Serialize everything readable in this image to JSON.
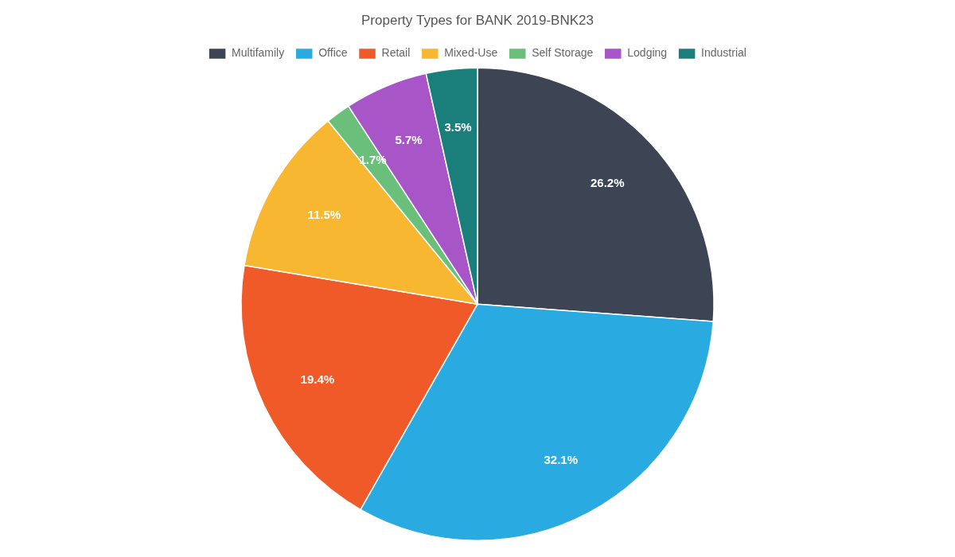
{
  "chart_data": {
    "type": "pie",
    "title": "Property Types for BANK 2019-BNK23",
    "categories": [
      "Multifamily",
      "Office",
      "Retail",
      "Mixed-Use",
      "Self Storage",
      "Lodging",
      "Industrial"
    ],
    "values": [
      26.2,
      32.1,
      19.4,
      11.5,
      1.7,
      5.7,
      3.5
    ],
    "value_labels": [
      "26.2%",
      "32.1%",
      "19.4%",
      "11.5%",
      "1.7%",
      "5.7%",
      "3.5%"
    ],
    "colors": [
      "#3d4555",
      "#29abe2",
      "#f05a28",
      "#f7b731",
      "#6abf7b",
      "#a855c8",
      "#1a7f7a"
    ],
    "data_labels": true,
    "legend": "top"
  }
}
